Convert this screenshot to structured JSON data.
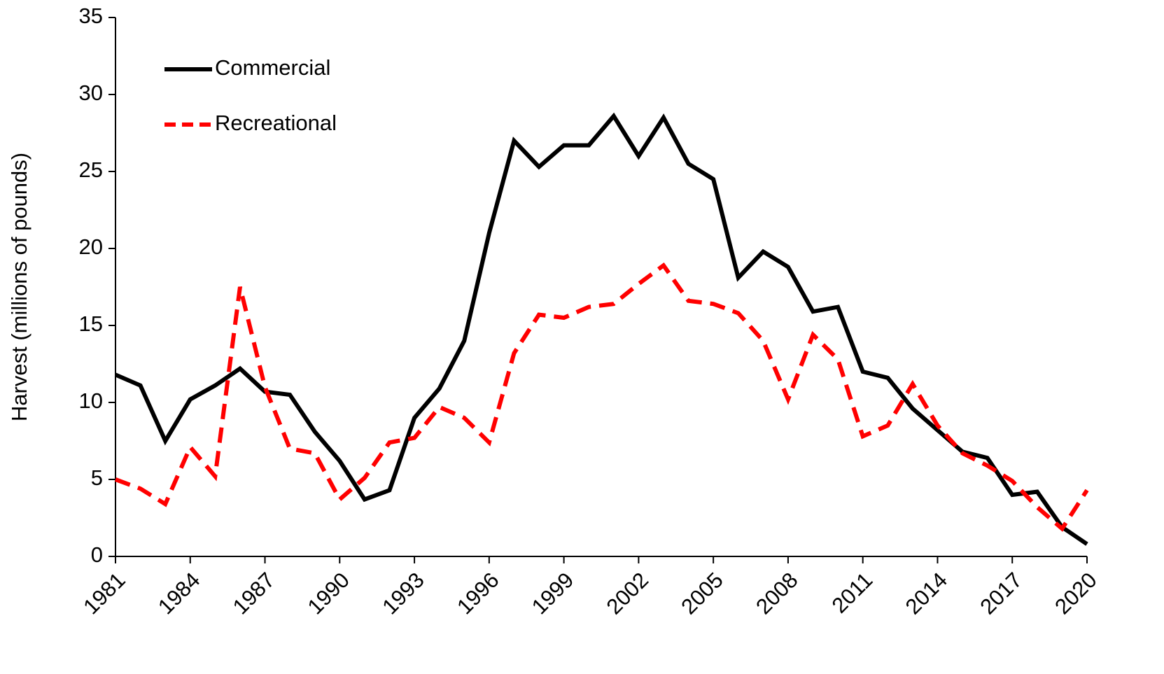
{
  "chart_data": {
    "type": "line",
    "y_label": "Harvest (millions of pounds)",
    "x": [
      1981,
      1982,
      1983,
      1984,
      1985,
      1986,
      1987,
      1988,
      1989,
      1990,
      1991,
      1992,
      1993,
      1994,
      1995,
      1996,
      1997,
      1998,
      1999,
      2000,
      2001,
      2002,
      2003,
      2004,
      2005,
      2006,
      2007,
      2008,
      2009,
      2010,
      2011,
      2012,
      2013,
      2014,
      2015,
      2016,
      2017,
      2018,
      2019,
      2020
    ],
    "series": [
      {
        "name": "Commercial",
        "color": "#000000",
        "dash": "solid",
        "values": [
          11.8,
          11.1,
          7.5,
          10.2,
          11.1,
          12.2,
          10.7,
          10.5,
          8.1,
          6.2,
          3.7,
          4.3,
          9.0,
          10.9,
          14.0,
          21.0,
          27.0,
          25.3,
          26.7,
          26.7,
          28.6,
          26.0,
          28.5,
          25.5,
          24.5,
          18.1,
          19.8,
          18.8,
          15.9,
          16.2,
          12.0,
          11.6,
          9.6,
          8.2,
          6.8,
          6.4,
          4.0,
          4.2,
          1.9,
          0.8
        ]
      },
      {
        "name": "Recreational",
        "color": "#ff0000",
        "dash": "dashed",
        "values": [
          5.0,
          4.4,
          3.4,
          7.1,
          5.2,
          17.5,
          11.0,
          7.0,
          6.7,
          3.7,
          5.1,
          7.4,
          7.7,
          9.7,
          9.0,
          7.4,
          13.2,
          15.7,
          15.5,
          16.2,
          16.4,
          17.7,
          18.9,
          16.6,
          16.4,
          15.8,
          14.0,
          10.2,
          14.4,
          12.8,
          7.8,
          8.5,
          11.2,
          8.5,
          6.7,
          5.9,
          4.9,
          3.2,
          1.8,
          4.3
        ]
      }
    ],
    "xlim": [
      1981,
      2020
    ],
    "xticks": [
      1981,
      1984,
      1987,
      1990,
      1993,
      1996,
      1999,
      2002,
      2005,
      2008,
      2011,
      2014,
      2017,
      2020
    ],
    "ylim": [
      0,
      35
    ],
    "yticks": [
      0,
      5,
      10,
      15,
      20,
      25,
      30,
      35
    ],
    "grid": false,
    "legend": "upper left"
  }
}
